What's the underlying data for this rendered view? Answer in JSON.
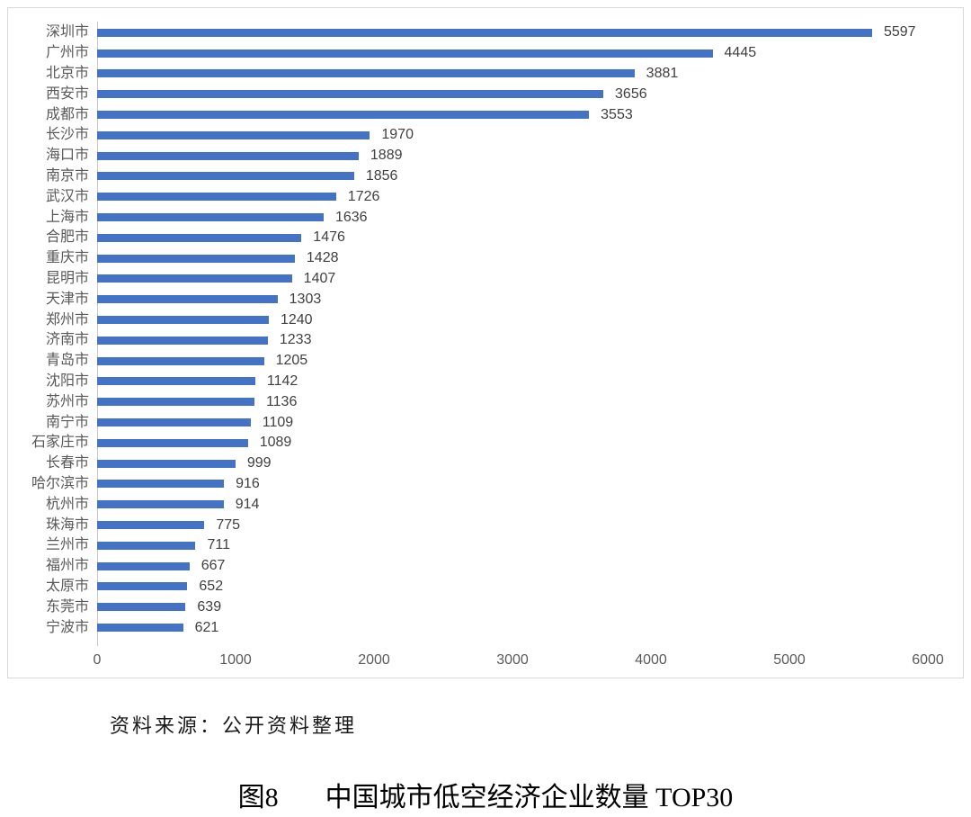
{
  "chart_data": {
    "type": "bar",
    "orientation": "horizontal",
    "title": "",
    "xlabel": "",
    "ylabel": "",
    "categories": [
      "深圳市",
      "广州市",
      "北京市",
      "西安市",
      "成都市",
      "长沙市",
      "海口市",
      "南京市",
      "武汉市",
      "上海市",
      "合肥市",
      "重庆市",
      "昆明市",
      "天津市",
      "郑州市",
      "济南市",
      "青岛市",
      "沈阳市",
      "苏州市",
      "南宁市",
      "石家庄市",
      "长春市",
      "哈尔滨市",
      "杭州市",
      "珠海市",
      "兰州市",
      "福州市",
      "太原市",
      "东莞市",
      "宁波市"
    ],
    "values": [
      5597,
      4445,
      3881,
      3656,
      3553,
      1970,
      1889,
      1856,
      1726,
      1636,
      1476,
      1428,
      1407,
      1303,
      1240,
      1233,
      1205,
      1142,
      1136,
      1109,
      1089,
      999,
      916,
      914,
      775,
      711,
      667,
      652,
      639,
      621
    ],
    "xlim": [
      0,
      6000
    ],
    "x_ticks": [
      0,
      1000,
      2000,
      3000,
      4000,
      5000,
      6000
    ],
    "grid": "off",
    "legend": "none",
    "value_labels": "end-of-bar",
    "bar_color": "#4472C4",
    "axis_label_color": "#595959",
    "value_label_color": "#404040",
    "frame_border_color": "#d9d9d9"
  },
  "source_note": "资料来源：公开资料整理",
  "caption": {
    "prefix": "图8",
    "title": "中国城市低空经济企业数量 TOP30"
  }
}
